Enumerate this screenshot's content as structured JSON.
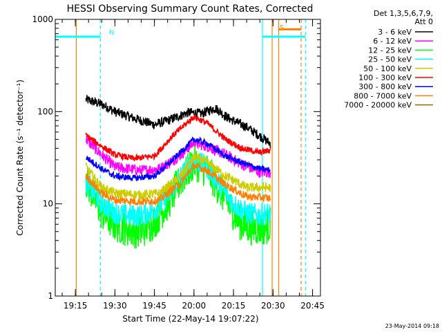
{
  "chart_data": {
    "type": "line",
    "title": "HESSI Observing Summary Count Rates, Corrected",
    "xlabel": "Start Time (22-May-14 19:07:22)",
    "ylabel": "Corrected Count Rate (s⁻¹ detector⁻¹)",
    "ylim": [
      1,
      1000
    ],
    "y_scale": "log",
    "xlim": [
      "19:07:22",
      "20:48:00"
    ],
    "x_ticks": [
      "19:15",
      "19:30",
      "19:45",
      "20:00",
      "20:15",
      "20:30",
      "20:45"
    ],
    "y_ticks": [
      "1",
      "10",
      "100",
      "1000"
    ],
    "grid": false,
    "legend_position": "right",
    "legend_header": [
      "Det 1,3,5,6,7,9,",
      "Att 0"
    ],
    "series": [
      {
        "name": "3 - 6 keV",
        "color": "#000000",
        "x": [
          "19:19",
          "19:25",
          "19:30",
          "19:37",
          "19:45",
          "19:50",
          "19:58",
          "20:03",
          "20:08",
          "20:13",
          "20:20",
          "20:26",
          "20:29"
        ],
        "values": [
          135,
          120,
          100,
          85,
          72,
          80,
          98,
          95,
          110,
          85,
          68,
          52,
          45
        ]
      },
      {
        "name": "6 - 12 keV",
        "color": "#ff00ff",
        "x": [
          "19:19",
          "19:25",
          "19:30",
          "19:40",
          "19:47",
          "19:55",
          "20:00",
          "20:05",
          "20:12",
          "20:18",
          "20:25",
          "20:29"
        ],
        "values": [
          50,
          34,
          25,
          23,
          24,
          34,
          46,
          42,
          34,
          27,
          22,
          22
        ]
      },
      {
        "name": "12 - 25 keV",
        "color": "#00ff00",
        "x": [
          "19:19",
          "19:25",
          "19:30",
          "19:35",
          "19:40",
          "19:45",
          "19:50",
          "19:55",
          "20:00",
          "20:05",
          "20:10",
          "20:15",
          "20:18",
          "20:22",
          "20:27",
          "20:29"
        ],
        "values": [
          18,
          8,
          6,
          5.3,
          5,
          6.5,
          10,
          18,
          28,
          23,
          14,
          8,
          6,
          5.5,
          5.5,
          6
        ]
      },
      {
        "name": "25 - 50 keV",
        "color": "#00ffff",
        "x": [
          "19:19",
          "19:25",
          "19:30",
          "19:35",
          "19:40",
          "19:45",
          "19:50",
          "19:55",
          "20:00",
          "20:05",
          "20:10",
          "20:15",
          "20:20",
          "20:25",
          "20:29"
        ],
        "values": [
          17,
          10,
          8,
          7.5,
          7.5,
          8.5,
          12,
          20,
          30,
          25,
          16,
          10,
          8,
          7.5,
          8
        ]
      },
      {
        "name": "50 - 100 keV",
        "color": "#cccc00",
        "x": [
          "19:19",
          "19:25",
          "19:30",
          "19:40",
          "19:47",
          "19:55",
          "20:00",
          "20:05",
          "20:12",
          "20:20",
          "20:29"
        ],
        "values": [
          25,
          15,
          13,
          12.5,
          13,
          20,
          32,
          28,
          20,
          15,
          15
        ]
      },
      {
        "name": "100 - 300 keV",
        "color": "#ff0000",
        "x": [
          "19:19",
          "19:25",
          "19:30",
          "19:37",
          "19:45",
          "19:52",
          "20:00",
          "20:05",
          "20:12",
          "20:18",
          "20:25",
          "20:29"
        ],
        "values": [
          55,
          42,
          34,
          31,
          33,
          55,
          88,
          75,
          50,
          40,
          36,
          38
        ]
      },
      {
        "name": "300 - 800 keV",
        "color": "#0000ff",
        "x": [
          "19:19",
          "19:25",
          "19:30",
          "19:37",
          "19:45",
          "19:52",
          "20:00",
          "20:05",
          "20:12",
          "20:18",
          "20:25",
          "20:29"
        ],
        "values": [
          32,
          24,
          20,
          19,
          20,
          30,
          50,
          45,
          33,
          28,
          24,
          23
        ]
      },
      {
        "name": "800 - 7000 keV",
        "color": "#ff8000",
        "x": [
          "19:19",
          "19:25",
          "19:30",
          "19:40",
          "19:47",
          "19:55",
          "20:00",
          "20:05",
          "20:12",
          "20:20",
          "20:29"
        ],
        "values": [
          20,
          13,
          11,
          10.5,
          11,
          17,
          26,
          23,
          16,
          12,
          11.5
        ]
      },
      {
        "name": "7000 - 20000 keV",
        "color": "#996600",
        "x": [],
        "values": []
      }
    ],
    "markers": [
      {
        "label": "N",
        "color": "#00ffff",
        "style": "dashed",
        "time": "19:24:30"
      },
      {
        "label": "S",
        "color": "#ff8000",
        "style": "dashed",
        "time": "20:40:40"
      }
    ],
    "bars": [
      {
        "color": "#00ffff",
        "time_start": "19:07:22",
        "time_end": "19:24:30",
        "value": 650
      },
      {
        "color": "#00ffff",
        "time_start": "20:26:00",
        "time_end": "20:42:20",
        "value": 650
      },
      {
        "color": "#ff8000",
        "time_start": "20:32:10",
        "time_end": "20:40:40",
        "value": 780
      }
    ],
    "vertical_lines": [
      {
        "color": "#00ffff",
        "time": "19:07:22"
      },
      {
        "color": "#00ffff",
        "time": "20:26:00"
      },
      {
        "color": "#ff8000",
        "time": "19:15:20"
      },
      {
        "color": "#ff8000",
        "time": "20:29:40"
      },
      {
        "color": "#ff8000",
        "time": "20:32:10"
      },
      {
        "color": "#00ffff",
        "time": "20:42:20",
        "style": "dashed"
      }
    ]
  },
  "timestamp": "23-May-2014 09:18"
}
